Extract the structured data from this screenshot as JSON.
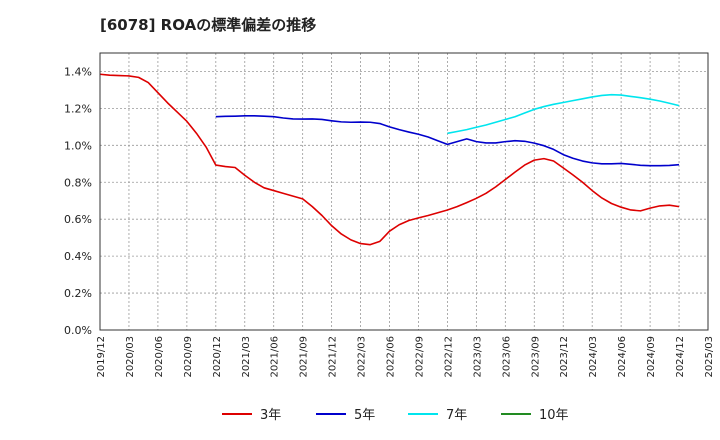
{
  "chart_data": {
    "type": "line",
    "title": "[6078]  ROAの標準偏差の推移",
    "xlabel": "",
    "ylabel": "",
    "ylim": [
      0,
      1.5
    ],
    "y_ticks": [
      "0.0%",
      "0.2%",
      "0.4%",
      "0.6%",
      "0.8%",
      "1.0%",
      "1.2%",
      "1.4%"
    ],
    "x_ticks": [
      "2019/12",
      "2020/03",
      "2020/06",
      "2020/09",
      "2020/12",
      "2021/03",
      "2021/06",
      "2021/09",
      "2021/12",
      "2022/03",
      "2022/06",
      "2022/09",
      "2022/12",
      "2023/03",
      "2023/06",
      "2023/09",
      "2023/12",
      "2024/03",
      "2024/06",
      "2024/09",
      "2024/12",
      "2025/03"
    ],
    "grid": true,
    "legend_position": "bottom",
    "series": [
      {
        "name": "3年",
        "color": "#dd0000",
        "x": [
          "2019/12",
          "2020/01",
          "2020/02",
          "2020/03",
          "2020/04",
          "2020/05",
          "2020/06",
          "2020/07",
          "2020/08",
          "2020/09",
          "2020/10",
          "2020/11",
          "2020/12",
          "2021/01",
          "2021/02",
          "2021/03",
          "2021/04",
          "2021/05",
          "2021/06",
          "2021/07",
          "2021/08",
          "2021/09",
          "2021/10",
          "2021/11",
          "2021/12",
          "2022/01",
          "2022/02",
          "2022/03",
          "2022/04",
          "2022/05",
          "2022/06",
          "2022/07",
          "2022/08",
          "2022/09",
          "2022/10",
          "2022/11",
          "2022/12",
          "2023/01",
          "2023/02",
          "2023/03",
          "2023/04",
          "2023/05",
          "2023/06",
          "2023/07",
          "2023/08",
          "2023/09",
          "2023/10",
          "2023/11",
          "2023/12",
          "2024/01",
          "2024/02",
          "2024/03",
          "2024/04",
          "2024/05",
          "2024/06",
          "2024/07",
          "2024/08",
          "2024/09",
          "2024/10",
          "2024/11",
          "2024/12"
        ],
        "values": [
          1.385,
          1.38,
          1.378,
          1.376,
          1.368,
          1.34,
          1.285,
          1.23,
          1.18,
          1.13,
          1.065,
          0.99,
          0.893,
          0.885,
          0.88,
          0.838,
          0.8,
          0.77,
          0.755,
          0.74,
          0.725,
          0.71,
          0.668,
          0.62,
          0.565,
          0.52,
          0.488,
          0.468,
          0.462,
          0.48,
          0.535,
          0.57,
          0.593,
          0.607,
          0.62,
          0.635,
          0.65,
          0.668,
          0.69,
          0.713,
          0.74,
          0.775,
          0.815,
          0.855,
          0.893,
          0.92,
          0.928,
          0.915,
          0.878,
          0.84,
          0.8,
          0.755,
          0.715,
          0.685,
          0.665,
          0.65,
          0.645,
          0.66,
          0.672,
          0.676,
          0.668
        ]
      },
      {
        "name": "5年",
        "color": "#0000cc",
        "x": [
          "2020/12",
          "2021/01",
          "2021/02",
          "2021/03",
          "2021/04",
          "2021/05",
          "2021/06",
          "2021/07",
          "2021/08",
          "2021/09",
          "2021/10",
          "2021/11",
          "2021/12",
          "2022/01",
          "2022/02",
          "2022/03",
          "2022/04",
          "2022/05",
          "2022/06",
          "2022/07",
          "2022/08",
          "2022/09",
          "2022/10",
          "2022/11",
          "2022/12",
          "2023/01",
          "2023/02",
          "2023/03",
          "2023/04",
          "2023/05",
          "2023/06",
          "2023/07",
          "2023/08",
          "2023/09",
          "2023/10",
          "2023/11",
          "2023/12",
          "2024/01",
          "2024/02",
          "2024/03",
          "2024/04",
          "2024/05",
          "2024/06",
          "2024/07",
          "2024/08",
          "2024/09",
          "2024/10",
          "2024/11",
          "2024/12"
        ],
        "values": [
          1.155,
          1.157,
          1.158,
          1.16,
          1.16,
          1.158,
          1.155,
          1.148,
          1.143,
          1.142,
          1.143,
          1.14,
          1.133,
          1.127,
          1.125,
          1.126,
          1.125,
          1.118,
          1.1,
          1.085,
          1.072,
          1.06,
          1.045,
          1.025,
          1.005,
          1.02,
          1.035,
          1.02,
          1.013,
          1.013,
          1.02,
          1.025,
          1.022,
          1.012,
          0.998,
          0.978,
          0.95,
          0.93,
          0.915,
          0.905,
          0.9,
          0.9,
          0.902,
          0.897,
          0.892,
          0.89,
          0.89,
          0.891,
          0.895
        ]
      },
      {
        "name": "7年",
        "color": "#00e5ee",
        "x": [
          "2022/12",
          "2023/01",
          "2023/02",
          "2023/03",
          "2023/04",
          "2023/05",
          "2023/06",
          "2023/07",
          "2023/08",
          "2023/09",
          "2023/10",
          "2023/11",
          "2023/12",
          "2024/01",
          "2024/02",
          "2024/03",
          "2024/04",
          "2024/05",
          "2024/06",
          "2024/07",
          "2024/08",
          "2024/09",
          "2024/10",
          "2024/11",
          "2024/12"
        ],
        "values": [
          1.065,
          1.075,
          1.085,
          1.098,
          1.11,
          1.125,
          1.14,
          1.155,
          1.175,
          1.195,
          1.21,
          1.222,
          1.232,
          1.242,
          1.252,
          1.262,
          1.27,
          1.274,
          1.272,
          1.265,
          1.258,
          1.25,
          1.24,
          1.228,
          1.215
        ]
      },
      {
        "name": "10年",
        "color": "#228b22",
        "x": [],
        "values": []
      }
    ]
  }
}
